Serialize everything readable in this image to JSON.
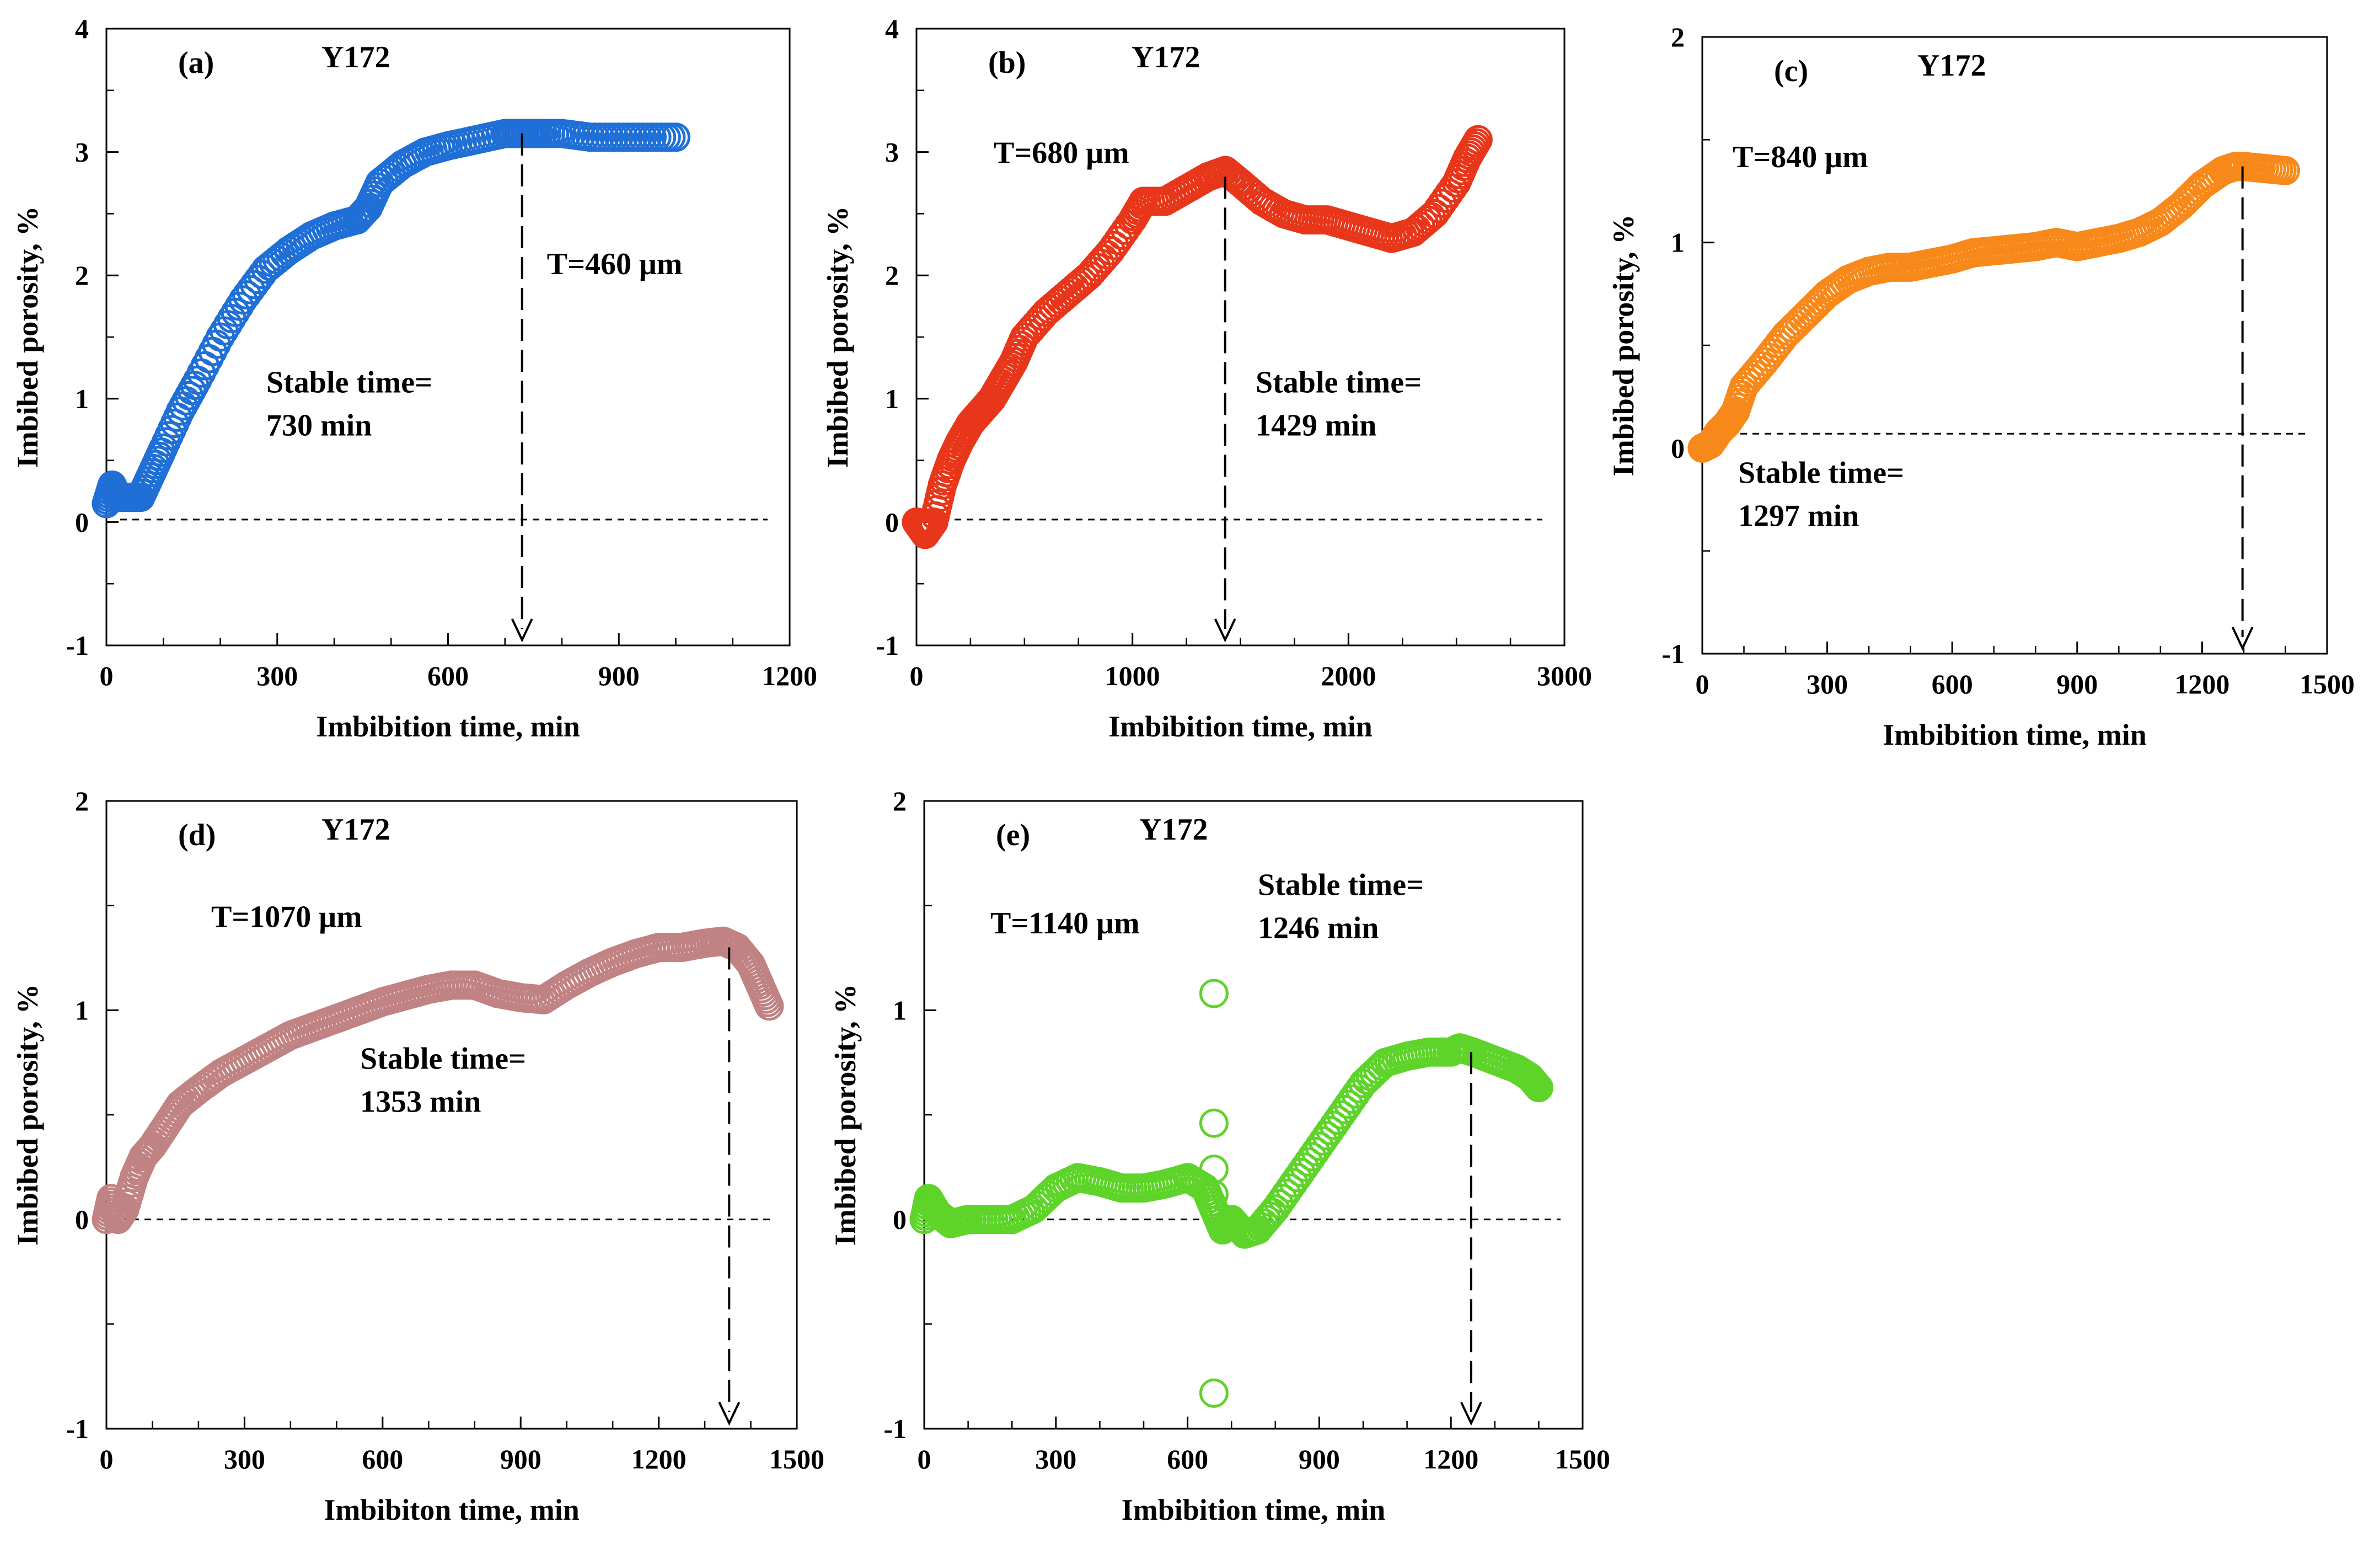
{
  "chart_data": [
    {
      "id": "a",
      "type": "scatter",
      "panel_label": "(a)",
      "sample": "Y172",
      "thickness_label": "T=460 μm",
      "stable_line1": "Stable time=",
      "stable_line2": "730 min",
      "xlabel": "Imbibition time, min",
      "ylabel": "Imbibed porosity, %",
      "xlim": [
        0,
        1200
      ],
      "ylim": [
        -1,
        4
      ],
      "xticks": [
        0,
        300,
        600,
        900,
        1200
      ],
      "yticks": [
        -1,
        0,
        1,
        2,
        3,
        4
      ],
      "xminor_step": 100,
      "yminor_step": 0.5,
      "color": "#1F6FD6",
      "series": [
        {
          "name": "Y172 T=460 μm",
          "x": [
            0,
            10,
            20,
            40,
            60,
            80,
            100,
            130,
            160,
            200,
            240,
            280,
            320,
            360,
            400,
            440,
            460,
            480,
            520,
            560,
            600,
            650,
            700,
            730,
            760,
            800,
            850,
            900,
            950,
            1000
          ],
          "y": [
            0.15,
            0.3,
            0.2,
            0.2,
            0.2,
            0.4,
            0.6,
            0.9,
            1.15,
            1.5,
            1.8,
            2.05,
            2.2,
            2.32,
            2.4,
            2.45,
            2.55,
            2.75,
            2.9,
            3.0,
            3.05,
            3.1,
            3.15,
            3.15,
            3.15,
            3.15,
            3.12,
            3.12,
            3.12,
            3.12
          ]
        }
      ],
      "hline_y": 0.02,
      "arrow_x": 730,
      "tpos": "right",
      "spos": "mid"
    },
    {
      "id": "b",
      "type": "scatter",
      "panel_label": "(b)",
      "sample": "Y172",
      "thickness_label": "T=680 μm",
      "stable_line1": "Stable time=",
      "stable_line2": "1429 min",
      "xlabel": "Imbibition time, min",
      "ylabel": "Imbibed porosity, %",
      "xlim": [
        0,
        3000
      ],
      "ylim": [
        -1,
        4
      ],
      "xticks": [
        0,
        1000,
        2000,
        3000
      ],
      "yticks": [
        -1,
        0,
        1,
        2,
        3,
        4
      ],
      "xminor_step": 250,
      "yminor_step": 0.5,
      "color": "#E8361A",
      "series": [
        {
          "name": "Y172 T=680 μm",
          "x": [
            0,
            40,
            80,
            120,
            160,
            200,
            250,
            300,
            350,
            400,
            450,
            500,
            600,
            700,
            800,
            900,
            1000,
            1050,
            1150,
            1250,
            1350,
            1430,
            1500,
            1600,
            1700,
            1800,
            1900,
            2000,
            2100,
            2200,
            2300,
            2400,
            2500,
            2550,
            2600
          ],
          "y": [
            0,
            -0.1,
            0,
            0.3,
            0.5,
            0.65,
            0.8,
            0.9,
            1.0,
            1.15,
            1.3,
            1.5,
            1.7,
            1.85,
            2.0,
            2.2,
            2.45,
            2.6,
            2.6,
            2.7,
            2.8,
            2.85,
            2.75,
            2.6,
            2.5,
            2.45,
            2.45,
            2.4,
            2.35,
            2.3,
            2.35,
            2.5,
            2.75,
            2.95,
            3.1
          ]
        }
      ],
      "hline_y": 0.02,
      "arrow_x": 1429,
      "tpos": "left",
      "spos": "mid"
    },
    {
      "id": "c",
      "type": "scatter",
      "panel_label": "(c)",
      "sample": "Y172",
      "thickness_label": "T=840 μm",
      "stable_line1": "Stable time=",
      "stable_line2": "1297 min",
      "xlabel": "Imbibition time, min",
      "ylabel": "Imbibed porosity, %",
      "xlim": [
        0,
        1500
      ],
      "ylim": [
        -1,
        2
      ],
      "xticks": [
        0,
        300,
        600,
        900,
        1200,
        1500
      ],
      "yticks": [
        -1,
        0,
        1,
        2
      ],
      "xminor_step": 100,
      "yminor_step": 0.5,
      "color": "#F7891A",
      "series": [
        {
          "name": "Y172 T=840 μm",
          "x": [
            0,
            20,
            40,
            60,
            80,
            100,
            150,
            200,
            250,
            300,
            350,
            400,
            450,
            500,
            550,
            600,
            650,
            700,
            750,
            800,
            850,
            900,
            950,
            1000,
            1050,
            1100,
            1150,
            1200,
            1250,
            1280,
            1300,
            1350,
            1400
          ],
          "y": [
            0,
            0.02,
            0.08,
            0.12,
            0.18,
            0.3,
            0.42,
            0.55,
            0.65,
            0.75,
            0.82,
            0.86,
            0.88,
            0.88,
            0.9,
            0.92,
            0.95,
            0.96,
            0.97,
            0.98,
            1.0,
            0.98,
            1.0,
            1.02,
            1.05,
            1.1,
            1.18,
            1.28,
            1.35,
            1.37,
            1.37,
            1.36,
            1.35
          ]
        }
      ],
      "hline_y": 0.07,
      "arrow_x": 1297,
      "tpos": "left",
      "spos": "low"
    },
    {
      "id": "d",
      "type": "scatter",
      "panel_label": "(d)",
      "sample": "Y172",
      "thickness_label": "T=1070 μm",
      "stable_line1": "Stable time=",
      "stable_line2": "1353 min",
      "xlabel": "Imbibiton time, min",
      "ylabel": "Imbibed porosity, %",
      "xlim": [
        0,
        1500
      ],
      "ylim": [
        -1,
        2
      ],
      "xticks": [
        0,
        300,
        600,
        900,
        1200,
        1500
      ],
      "yticks": [
        -1,
        0,
        1,
        2
      ],
      "xminor_step": 100,
      "yminor_step": 0.5,
      "color": "#C08282",
      "series": [
        {
          "name": "Y172 T=1070 μm",
          "x": [
            0,
            10,
            25,
            40,
            60,
            80,
            100,
            130,
            160,
            200,
            250,
            300,
            350,
            400,
            450,
            500,
            550,
            600,
            650,
            700,
            750,
            800,
            850,
            900,
            950,
            1000,
            1050,
            1100,
            1150,
            1200,
            1250,
            1300,
            1340,
            1370,
            1400,
            1420,
            1440
          ],
          "y": [
            0,
            0.1,
            0,
            0.05,
            0.2,
            0.3,
            0.35,
            0.45,
            0.55,
            0.62,
            0.7,
            0.76,
            0.82,
            0.88,
            0.92,
            0.96,
            1.0,
            1.04,
            1.07,
            1.1,
            1.12,
            1.12,
            1.08,
            1.06,
            1.05,
            1.12,
            1.18,
            1.23,
            1.27,
            1.3,
            1.3,
            1.32,
            1.33,
            1.3,
            1.22,
            1.12,
            1.02
          ]
        }
      ],
      "hline_y": 0.0,
      "arrow_x": 1353,
      "tpos": "left",
      "spos": "mid"
    },
    {
      "id": "e",
      "type": "scatter",
      "panel_label": "(e)",
      "sample": "Y172",
      "thickness_label": "T=1140 μm",
      "stable_line1": "Stable time=",
      "stable_line2": "1246 min",
      "xlabel": "Imbibition time, min",
      "ylabel": "Imbibed porosity, %",
      "xlim": [
        0,
        1500
      ],
      "ylim": [
        -1,
        2
      ],
      "xticks": [
        0,
        300,
        600,
        900,
        1200,
        1500
      ],
      "yticks": [
        -1,
        0,
        1,
        2
      ],
      "xminor_step": 100,
      "yminor_step": 0.5,
      "color": "#5ED42A",
      "series": [
        {
          "name": "Y172 T=1140 μm",
          "x": [
            0,
            10,
            30,
            60,
            100,
            150,
            200,
            250,
            300,
            350,
            400,
            450,
            500,
            550,
            600,
            640,
            660,
            680,
            700,
            730,
            760,
            800,
            850,
            900,
            950,
            1000,
            1050,
            1100,
            1150,
            1200,
            1220,
            1250,
            1300,
            1350,
            1380,
            1400
          ],
          "y": [
            0,
            0.1,
            0.03,
            -0.02,
            0,
            0,
            0,
            0.05,
            0.15,
            0.2,
            0.18,
            0.15,
            0.15,
            0.17,
            0.2,
            0.15,
            0.05,
            -0.05,
            0.0,
            -0.07,
            -0.05,
            0.05,
            0.2,
            0.35,
            0.5,
            0.65,
            0.75,
            0.78,
            0.8,
            0.8,
            0.82,
            0.8,
            0.76,
            0.72,
            0.68,
            0.63
          ]
        }
      ],
      "outliers": {
        "x": [
          660,
          660,
          660,
          660,
          660
        ],
        "y": [
          1.08,
          0.46,
          0.24,
          0.12,
          -0.83
        ]
      },
      "hline_y": 0.0,
      "arrow_x": 1246,
      "tpos": "left",
      "spos": "upper"
    }
  ]
}
